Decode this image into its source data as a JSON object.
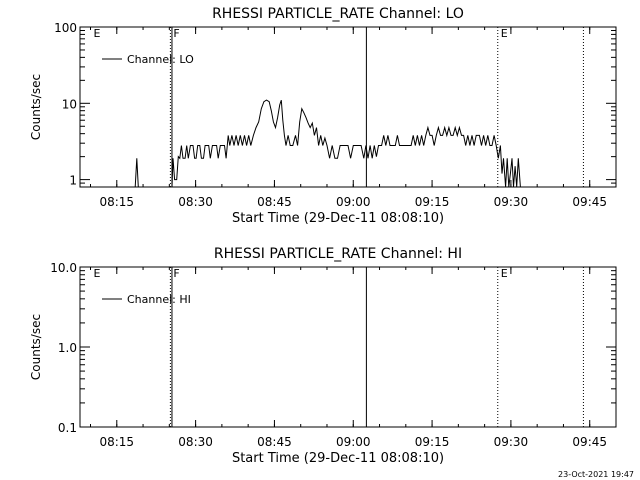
{
  "footer": {
    "timestamp": "23-Oct-2021 19:47"
  },
  "colors": {
    "foreground": "#000000",
    "background": "#ffffff"
  },
  "chart_data": [
    {
      "type": "line",
      "title": "RHESSI PARTICLE_RATE Channel: LO",
      "xlabel": "Start Time (29-Dec-11 08:08:10)",
      "ylabel": "Counts/sec",
      "yscale": "log",
      "xlim": [
        "08:08",
        "09:50"
      ],
      "ylim": [
        0.8,
        100
      ],
      "yticks": [
        {
          "value": 1,
          "label": "1"
        },
        {
          "value": 10,
          "label": "10"
        },
        {
          "value": 100,
          "label": "100"
        }
      ],
      "xticks": [
        "08:15",
        "08:30",
        "08:45",
        "09:00",
        "09:15",
        "09:30",
        "09:45"
      ],
      "legend": {
        "position": "top-left",
        "entries": [
          "Channel: LO"
        ]
      },
      "markers": [
        {
          "time": "08:10",
          "label": "E",
          "style": "none"
        },
        {
          "time": "08:25.2",
          "label": "F",
          "style": "dotted"
        },
        {
          "time": "08:25.5",
          "label": "",
          "style": "solid"
        },
        {
          "time": "09:02.5",
          "label": "",
          "style": "solid"
        },
        {
          "time": "09:27.5",
          "label": "E",
          "style": "dotted"
        },
        {
          "time": "09:43.8",
          "label": "",
          "style": "dotted"
        }
      ],
      "series": [
        {
          "name": "Channel: LO",
          "segments": [
            [
              [
                "08:18.5",
                0.8
              ],
              [
                "08:18.8",
                1.9
              ],
              [
                "08:19.1",
                0.8
              ]
            ],
            [
              [
                "08:25.5",
                0.8
              ],
              [
                "08:25.7",
                1.9
              ],
              [
                "08:26",
                1
              ],
              [
                "08:26.4",
                1
              ],
              [
                "08:26.7",
                2
              ],
              [
                "08:27",
                1.9
              ],
              [
                "08:27.3",
                2.8
              ],
              [
                "08:27.6",
                1.9
              ],
              [
                "08:28",
                1.9
              ],
              [
                "08:28.3",
                2.8
              ],
              [
                "08:28.6",
                1.9
              ],
              [
                "08:29",
                2.8
              ],
              [
                "08:29.5",
                2.8
              ],
              [
                "08:29.8",
                1.9
              ],
              [
                "08:30.1",
                1.9
              ],
              [
                "08:30.4",
                2.8
              ],
              [
                "08:30.8",
                2.8
              ],
              [
                "08:31.1",
                1.9
              ],
              [
                "08:31.5",
                1.9
              ],
              [
                "08:31.8",
                2.8
              ],
              [
                "08:32.5",
                2.8
              ],
              [
                "08:32.8",
                1.9
              ],
              [
                "08:33.2",
                2.8
              ],
              [
                "08:34",
                2.8
              ],
              [
                "08:34.3",
                1.9
              ],
              [
                "08:34.7",
                2.8
              ],
              [
                "08:35.5",
                2.8
              ],
              [
                "08:35.8",
                1.9
              ],
              [
                "08:36.2",
                3.8
              ],
              [
                "08:36.5",
                2.8
              ],
              [
                "08:36.9",
                3.8
              ],
              [
                "08:37.3",
                2.8
              ],
              [
                "08:37.7",
                3.8
              ],
              [
                "08:38.1",
                2.8
              ],
              [
                "08:38.5",
                3.8
              ],
              [
                "08:38.9",
                2.8
              ],
              [
                "08:39.3",
                3.8
              ],
              [
                "08:39.7",
                2.8
              ],
              [
                "08:40.1",
                3.8
              ],
              [
                "08:40.5",
                2.8
              ],
              [
                "08:41",
                3.8
              ],
              [
                "08:41.5",
                4.8
              ],
              [
                "08:42",
                5.7
              ],
              [
                "08:42.5",
                8.5
              ],
              [
                "08:43",
                10.5
              ],
              [
                "08:43.5",
                11
              ],
              [
                "08:44",
                10.5
              ],
              [
                "08:44.4",
                8
              ],
              [
                "08:44.8",
                5.7
              ],
              [
                "08:45.2",
                4.8
              ],
              [
                "08:45.6",
                6.5
              ],
              [
                "08:46",
                9.5
              ],
              [
                "08:46.3",
                11
              ],
              [
                "08:46.6",
                6
              ],
              [
                "08:46.9",
                3.8
              ],
              [
                "08:47.2",
                2.8
              ],
              [
                "08:47.6",
                3.8
              ],
              [
                "08:48",
                2.8
              ],
              [
                "08:48.5",
                2.8
              ],
              [
                "08:49",
                3.8
              ],
              [
                "08:49.4",
                2.8
              ],
              [
                "08:49.8",
                5.7
              ],
              [
                "08:50.2",
                8.5
              ],
              [
                "08:50.6",
                7.5
              ],
              [
                "08:51",
                6.5
              ],
              [
                "08:51.4",
                5.5
              ],
              [
                "08:51.8",
                4.8
              ],
              [
                "08:52.2",
                5.5
              ],
              [
                "08:52.6",
                3.8
              ],
              [
                "08:53",
                4.8
              ],
              [
                "08:53.4",
                2.8
              ],
              [
                "08:53.8",
                3.8
              ],
              [
                "08:54.2",
                2.8
              ],
              [
                "08:54.6",
                3.5
              ],
              [
                "08:55",
                2.8
              ],
              [
                "08:55.5",
                1.9
              ],
              [
                "08:56",
                2.8
              ],
              [
                "08:56.5",
                1.9
              ],
              [
                "08:57",
                1.9
              ],
              [
                "08:57.5",
                2.8
              ],
              [
                "08:58.5",
                2.8
              ],
              [
                "08:59",
                2.8
              ],
              [
                "08:59.5",
                1.9
              ],
              [
                "09:00",
                2.8
              ],
              [
                "09:01",
                2.8
              ],
              [
                "09:01.5",
                2.8
              ],
              [
                "09:02",
                1.9
              ],
              [
                "09:02.4",
                2.8
              ],
              [
                "09:02.8",
                1.9
              ],
              [
                "09:03.2",
                2.8
              ],
              [
                "09:03.6",
                1.9
              ],
              [
                "09:04",
                2.8
              ],
              [
                "09:04.4",
                2
              ],
              [
                "09:04.8",
                2.8
              ],
              [
                "09:05.4",
                2.8
              ],
              [
                "09:05.8",
                3.8
              ],
              [
                "09:06.2",
                2.8
              ],
              [
                "09:06.6",
                3.8
              ],
              [
                "09:07",
                2.8
              ],
              [
                "09:08",
                2.8
              ],
              [
                "09:08.4",
                3.8
              ],
              [
                "09:08.8",
                2.8
              ],
              [
                "09:09.5",
                2.8
              ],
              [
                "09:10",
                2.8
              ],
              [
                "09:11",
                2.8
              ],
              [
                "09:11.4",
                3.8
              ],
              [
                "09:11.8",
                2.8
              ],
              [
                "09:12.2",
                3.8
              ],
              [
                "09:12.6",
                2.8
              ],
              [
                "09:13",
                3.8
              ],
              [
                "09:13.4",
                2.8
              ],
              [
                "09:13.8",
                3.8
              ],
              [
                "09:14.2",
                4.8
              ],
              [
                "09:14.6",
                3.8
              ],
              [
                "09:15",
                3.8
              ],
              [
                "09:15.4",
                2.8
              ],
              [
                "09:15.8",
                3.8
              ],
              [
                "09:16.2",
                4.8
              ],
              [
                "09:16.6",
                3.8
              ],
              [
                "09:17",
                3.8
              ],
              [
                "09:17.4",
                4.8
              ],
              [
                "09:17.8",
                3.8
              ],
              [
                "09:18.2",
                4.8
              ],
              [
                "09:18.6",
                3.8
              ],
              [
                "09:19",
                3.8
              ],
              [
                "09:19.4",
                4.8
              ],
              [
                "09:19.8",
                3.8
              ],
              [
                "09:20.2",
                4.8
              ],
              [
                "09:20.6",
                3.8
              ],
              [
                "09:21",
                3.8
              ],
              [
                "09:21.4",
                2.8
              ],
              [
                "09:21.8",
                3.8
              ],
              [
                "09:22.2",
                2.8
              ],
              [
                "09:22.6",
                3.8
              ],
              [
                "09:23",
                2.8
              ],
              [
                "09:23.4",
                3.8
              ],
              [
                "09:24",
                3.8
              ],
              [
                "09:24.4",
                2.8
              ],
              [
                "09:24.8",
                3.8
              ],
              [
                "09:25.2",
                2.8
              ],
              [
                "09:25.6",
                3.8
              ],
              [
                "09:26",
                2.8
              ],
              [
                "09:26.4",
                2.8
              ],
              [
                "09:26.8",
                3.8
              ],
              [
                "09:27.2",
                2.8
              ],
              [
                "09:27.6",
                1.9
              ],
              [
                "09:28",
                2.8
              ],
              [
                "09:28.3",
                1.2
              ],
              [
                "09:28.6",
                1.9
              ],
              [
                "09:29",
                0.8
              ],
              [
                "09:29.3",
                1.9
              ],
              [
                "09:29.6",
                0.8
              ],
              [
                "09:29.9",
                1.2
              ],
              [
                "09:30.2",
                1.9
              ],
              [
                "09:30.5",
                0.8
              ],
              [
                "09:30.8",
                1.5
              ],
              [
                "09:31.1",
                0.8
              ],
              [
                "09:31.4",
                1.9
              ],
              [
                "09:31.8",
                0.8
              ]
            ]
          ]
        }
      ]
    },
    {
      "type": "line",
      "title": "RHESSI PARTICLE_RATE Channel: HI",
      "xlabel": "Start Time (29-Dec-11 08:08:10)",
      "ylabel": "Counts/sec",
      "yscale": "log",
      "xlim": [
        "08:08",
        "09:50"
      ],
      "ylim": [
        0.1,
        10
      ],
      "yticks": [
        {
          "value": 0.1,
          "label": "0.1"
        },
        {
          "value": 1,
          "label": "1.0"
        },
        {
          "value": 10,
          "label": "10.0"
        }
      ],
      "xticks": [
        "08:15",
        "08:30",
        "08:45",
        "09:00",
        "09:15",
        "09:30",
        "09:45"
      ],
      "legend": {
        "position": "top-left",
        "entries": [
          "Channel: HI"
        ]
      },
      "markers": [
        {
          "time": "08:10",
          "label": "E",
          "style": "none"
        },
        {
          "time": "08:25.2",
          "label": "F",
          "style": "dotted"
        },
        {
          "time": "08:25.5",
          "label": "",
          "style": "solid"
        },
        {
          "time": "09:02.5",
          "label": "",
          "style": "solid"
        },
        {
          "time": "09:27.5",
          "label": "E",
          "style": "dotted"
        },
        {
          "time": "09:43.8",
          "label": "",
          "style": "dotted"
        }
      ],
      "series": [
        {
          "name": "Channel: HI",
          "segments": []
        }
      ]
    }
  ]
}
